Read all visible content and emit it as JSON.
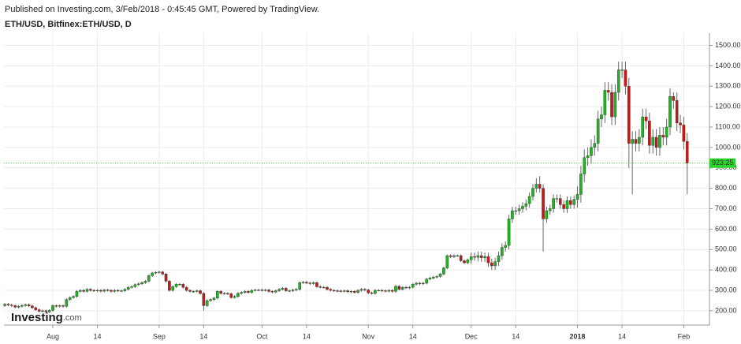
{
  "header": {
    "published": "Published on Investing.com, 3/Feb/2018 - 0:45:45 GMT, Powered by TradingView.",
    "symbol": "ETH/USD, Bitfinex:ETH/USD, D"
  },
  "logo": {
    "main": "Investing",
    "suffix": ".com"
  },
  "chart_data": {
    "type": "candlestick",
    "up_color": "#1fb51f",
    "down_color": "#c81818",
    "wick_color": "#666666",
    "grid": true,
    "last_price_color": "#2bd62b",
    "x": [
      "Jul 18",
      "Jul 19",
      "Jul 20",
      "Jul 21",
      "Jul 22",
      "Jul 23",
      "Jul 24",
      "Jul 25",
      "Jul 26",
      "Jul 27",
      "Jul 28",
      "Jul 29",
      "Jul 30",
      "Jul 31",
      "Aug 1",
      "Aug 2",
      "Aug 3",
      "Aug 4",
      "Aug 5",
      "Aug 6",
      "Aug 7",
      "Aug 8",
      "Aug 9",
      "Aug 10",
      "Aug 11",
      "Aug 12",
      "Aug 13",
      "Aug 14",
      "Aug 15",
      "Aug 16",
      "Aug 17",
      "Aug 18",
      "Aug 19",
      "Aug 20",
      "Aug 21",
      "Aug 22",
      "Aug 23",
      "Aug 24",
      "Aug 25",
      "Aug 26",
      "Aug 27",
      "Aug 28",
      "Aug 29",
      "Aug 30",
      "Aug 31",
      "Sep 1",
      "Sep 2",
      "Sep 3",
      "Sep 4",
      "Sep 5",
      "Sep 6",
      "Sep 7",
      "Sep 8",
      "Sep 9",
      "Sep 10",
      "Sep 11",
      "Sep 12",
      "Sep 13",
      "Sep 14",
      "Sep 15",
      "Sep 16",
      "Sep 17",
      "Sep 18",
      "Sep 19",
      "Sep 20",
      "Sep 21",
      "Sep 22",
      "Sep 23",
      "Sep 24",
      "Sep 25",
      "Sep 26",
      "Sep 27",
      "Sep 28",
      "Sep 29",
      "Sep 30",
      "Oct 1",
      "Oct 2",
      "Oct 3",
      "Oct 4",
      "Oct 5",
      "Oct 6",
      "Oct 7",
      "Oct 8",
      "Oct 9",
      "Oct 10",
      "Oct 11",
      "Oct 12",
      "Oct 13",
      "Oct 14",
      "Oct 15",
      "Oct 16",
      "Oct 17",
      "Oct 18",
      "Oct 19",
      "Oct 20",
      "Oct 21",
      "Oct 22",
      "Oct 23",
      "Oct 24",
      "Oct 25",
      "Oct 26",
      "Oct 27",
      "Oct 28",
      "Oct 29",
      "Oct 30",
      "Oct 31",
      "Nov 1",
      "Nov 2",
      "Nov 3",
      "Nov 4",
      "Nov 5",
      "Nov 6",
      "Nov 7",
      "Nov 8",
      "Nov 9",
      "Nov 10",
      "Nov 11",
      "Nov 12",
      "Nov 13",
      "Nov 14",
      "Nov 15",
      "Nov 16",
      "Nov 17",
      "Nov 18",
      "Nov 19",
      "Nov 20",
      "Nov 21",
      "Nov 22",
      "Nov 23",
      "Nov 24",
      "Nov 25",
      "Nov 26",
      "Nov 27",
      "Nov 28",
      "Nov 29",
      "Nov 30",
      "Dec 1",
      "Dec 2",
      "Dec 3",
      "Dec 4",
      "Dec 5",
      "Dec 6",
      "Dec 7",
      "Dec 8",
      "Dec 9",
      "Dec 10",
      "Dec 11",
      "Dec 12",
      "Dec 13",
      "Dec 14",
      "Dec 15",
      "Dec 16",
      "Dec 17",
      "Dec 18",
      "Dec 19",
      "Dec 20",
      "Dec 21",
      "Dec 22",
      "Dec 23",
      "Dec 24",
      "Dec 25",
      "Dec 26",
      "Dec 27",
      "Dec 28",
      "Dec 29",
      "Dec 30",
      "Dec 31",
      "Jan 1",
      "Jan 2",
      "Jan 3",
      "Jan 4",
      "Jan 5",
      "Jan 6",
      "Jan 7",
      "Jan 8",
      "Jan 9",
      "Jan 10",
      "Jan 11",
      "Jan 12",
      "Jan 13",
      "Jan 14",
      "Jan 15",
      "Jan 16",
      "Jan 17",
      "Jan 18",
      "Jan 19",
      "Jan 20",
      "Jan 21",
      "Jan 22",
      "Jan 23",
      "Jan 24",
      "Jan 25",
      "Jan 26",
      "Jan 27",
      "Jan 28",
      "Jan 29",
      "Jan 30",
      "Jan 31",
      "Feb 1",
      "Feb 2"
    ],
    "open": [
      225,
      232,
      228,
      225,
      218,
      222,
      226,
      230,
      224,
      215,
      205,
      198,
      200,
      195,
      202,
      225,
      222,
      225,
      222,
      255,
      265,
      270,
      295,
      300,
      295,
      305,
      300,
      298,
      300,
      296,
      302,
      300,
      295,
      300,
      298,
      298,
      305,
      315,
      318,
      328,
      332,
      338,
      345,
      372,
      385,
      388,
      390,
      380,
      345,
      300,
      318,
      330,
      330,
      315,
      300,
      295,
      295,
      298,
      285,
      225,
      250,
      255,
      262,
      295,
      285,
      285,
      283,
      265,
      270,
      285,
      290,
      295,
      290,
      300,
      302,
      302,
      300,
      302,
      295,
      292,
      298,
      305,
      310,
      298,
      298,
      302,
      305,
      338,
      340,
      336,
      333,
      338,
      318,
      315,
      315,
      305,
      300,
      298,
      297,
      296,
      298,
      293,
      295,
      290,
      300,
      305,
      302,
      288,
      285,
      300,
      300,
      298,
      296,
      300,
      295,
      320,
      305,
      315,
      312,
      315,
      330,
      335,
      332,
      335,
      355,
      360,
      365,
      368,
      380,
      410,
      470,
      465,
      470,
      470,
      445,
      435,
      450,
      465,
      462,
      470,
      460,
      465,
      435,
      420,
      440,
      470,
      510,
      520,
      650,
      690,
      690,
      700,
      712,
      725,
      760,
      800,
      820,
      800,
      650,
      690,
      700,
      750,
      750,
      720,
      700,
      740,
      720,
      745,
      770,
      870,
      950,
      960,
      1000,
      1020,
      1140,
      1160,
      1280,
      1270,
      1150,
      1270,
      1380,
      1380,
      1300,
      1020,
      1040,
      1020,
      1050,
      1150,
      1130,
      1010,
      1050,
      1000,
      1060,
      1050,
      1100,
      1250,
      1230,
      1120,
      1110,
      1030
    ],
    "high": [
      238,
      238,
      234,
      231,
      228,
      232,
      236,
      236,
      230,
      221,
      211,
      206,
      206,
      208,
      231,
      231,
      231,
      231,
      261,
      271,
      276,
      301,
      306,
      306,
      311,
      311,
      306,
      306,
      306,
      308,
      308,
      306,
      306,
      306,
      304,
      311,
      321,
      324,
      334,
      338,
      344,
      351,
      378,
      391,
      394,
      396,
      396,
      386,
      351,
      324,
      336,
      336,
      336,
      321,
      306,
      301,
      304,
      304,
      291,
      256,
      261,
      268,
      301,
      301,
      291,
      291,
      289,
      276,
      291,
      296,
      301,
      301,
      306,
      308,
      308,
      308,
      308,
      308,
      301,
      304,
      311,
      316,
      316,
      304,
      308,
      311,
      344,
      346,
      346,
      342,
      344,
      344,
      324,
      321,
      321,
      311,
      306,
      304,
      303,
      304,
      304,
      301,
      301,
      306,
      311,
      311,
      308,
      294,
      306,
      306,
      306,
      304,
      306,
      306,
      326,
      326,
      321,
      321,
      321,
      336,
      341,
      341,
      341,
      361,
      366,
      371,
      374,
      386,
      416,
      476,
      476,
      476,
      476,
      476,
      451,
      456,
      485,
      485,
      490,
      490,
      485,
      485,
      455,
      460,
      490,
      530,
      540,
      670,
      710,
      710,
      720,
      732,
      745,
      780,
      820,
      850,
      860,
      820,
      710,
      720,
      770,
      770,
      770,
      740,
      760,
      760,
      765,
      810,
      910,
      990,
      1000,
      1040,
      1060,
      1180,
      1200,
      1320,
      1320,
      1310,
      1310,
      1420,
      1420,
      1420,
      1340,
      1080,
      1080,
      1090,
      1190,
      1190,
      1170,
      1090,
      1090,
      1100,
      1100,
      1140,
      1290,
      1270,
      1270,
      1160,
      1150,
      1070
    ],
    "low": [
      219,
      222,
      219,
      212,
      212,
      216,
      220,
      218,
      209,
      199,
      192,
      192,
      189,
      189,
      196,
      216,
      216,
      216,
      216,
      249,
      259,
      264,
      289,
      289,
      289,
      294,
      292,
      292,
      290,
      290,
      294,
      289,
      289,
      292,
      292,
      292,
      299,
      309,
      312,
      322,
      326,
      332,
      339,
      366,
      379,
      382,
      374,
      339,
      294,
      294,
      312,
      324,
      309,
      294,
      289,
      289,
      289,
      279,
      200,
      219,
      244,
      249,
      256,
      279,
      279,
      277,
      259,
      259,
      264,
      279,
      284,
      284,
      284,
      294,
      296,
      294,
      294,
      289,
      286,
      286,
      292,
      299,
      292,
      292,
      292,
      296,
      299,
      332,
      330,
      327,
      327,
      312,
      309,
      309,
      299,
      294,
      292,
      291,
      290,
      290,
      287,
      287,
      284,
      284,
      294,
      296,
      282,
      279,
      279,
      294,
      292,
      290,
      290,
      289,
      289,
      299,
      299,
      306,
      306,
      309,
      324,
      326,
      326,
      329,
      349,
      354,
      359,
      362,
      374,
      404,
      459,
      459,
      464,
      439,
      429,
      429,
      430,
      445,
      442,
      440,
      440,
      415,
      400,
      400,
      420,
      450,
      490,
      500,
      630,
      670,
      670,
      680,
      692,
      705,
      740,
      780,
      780,
      490,
      630,
      670,
      680,
      730,
      700,
      680,
      680,
      700,
      700,
      705,
      730,
      830,
      910,
      920,
      960,
      980,
      1100,
      1120,
      1230,
      1110,
      1110,
      1230,
      1340,
      1260,
      900,
      770,
      980,
      980,
      1010,
      1090,
      970,
      970,
      960,
      960,
      1010,
      1010,
      1060,
      1190,
      1080,
      1070,
      990,
      770
    ],
    "close": [
      232,
      228,
      225,
      218,
      222,
      226,
      230,
      224,
      215,
      205,
      198,
      200,
      195,
      202,
      225,
      222,
      225,
      222,
      255,
      265,
      270,
      295,
      300,
      295,
      305,
      300,
      298,
      300,
      296,
      302,
      300,
      295,
      300,
      298,
      298,
      305,
      315,
      318,
      328,
      332,
      338,
      345,
      372,
      385,
      388,
      390,
      380,
      345,
      300,
      318,
      330,
      330,
      315,
      300,
      295,
      295,
      298,
      285,
      225,
      250,
      255,
      262,
      295,
      285,
      285,
      283,
      265,
      270,
      285,
      290,
      295,
      290,
      300,
      302,
      302,
      300,
      302,
      295,
      292,
      298,
      305,
      310,
      298,
      298,
      302,
      305,
      338,
      340,
      336,
      333,
      338,
      318,
      315,
      315,
      305,
      300,
      298,
      297,
      296,
      298,
      293,
      295,
      290,
      300,
      305,
      302,
      288,
      285,
      300,
      300,
      298,
      296,
      300,
      295,
      320,
      305,
      315,
      312,
      315,
      330,
      335,
      332,
      335,
      355,
      360,
      365,
      368,
      380,
      410,
      470,
      465,
      470,
      470,
      445,
      435,
      450,
      465,
      462,
      470,
      460,
      465,
      435,
      420,
      440,
      470,
      510,
      520,
      650,
      690,
      690,
      700,
      712,
      725,
      760,
      800,
      820,
      800,
      650,
      690,
      700,
      750,
      750,
      720,
      700,
      740,
      720,
      745,
      770,
      870,
      950,
      960,
      1000,
      1020,
      1140,
      1160,
      1280,
      1270,
      1150,
      1270,
      1380,
      1380,
      1300,
      1020,
      1040,
      1020,
      1050,
      1150,
      1130,
      1010,
      1050,
      1000,
      1060,
      1050,
      1100,
      1250,
      1230,
      1120,
      1110,
      1030,
      923.25
    ],
    "ylim": [
      130,
      1560
    ],
    "yticks": [
      {
        "value": 200,
        "label": "200.00"
      },
      {
        "value": 300,
        "label": "300.00"
      },
      {
        "value": 400,
        "label": "400.00"
      },
      {
        "value": 500,
        "label": "500.00"
      },
      {
        "value": 600,
        "label": "600.00"
      },
      {
        "value": 700,
        "label": "700.00"
      },
      {
        "value": 800,
        "label": "800.00"
      },
      {
        "value": 900,
        "label": "900.00"
      },
      {
        "value": 1000,
        "label": "1000.00"
      },
      {
        "value": 1100,
        "label": "1100.00"
      },
      {
        "value": 1200,
        "label": "1200.00"
      },
      {
        "value": 1300,
        "label": "1300.00"
      },
      {
        "value": 1400,
        "label": "1400.00"
      },
      {
        "value": 1500,
        "label": "1500.00"
      }
    ],
    "xticks": [
      {
        "value": "Aug 1",
        "label": "Aug"
      },
      {
        "value": "Aug 14",
        "label": "14"
      },
      {
        "value": "Sep 1",
        "label": "Sep"
      },
      {
        "value": "Sep 14",
        "label": "14"
      },
      {
        "value": "Oct 1",
        "label": "Oct"
      },
      {
        "value": "Oct 14",
        "label": "14"
      },
      {
        "value": "Nov 1",
        "label": "Nov"
      },
      {
        "value": "Nov 14",
        "label": "14"
      },
      {
        "value": "Dec 1",
        "label": "Dec"
      },
      {
        "value": "Dec 14",
        "label": "14"
      },
      {
        "value": "Jan 1",
        "label": "2018"
      },
      {
        "value": "Jan 14",
        "label": "14"
      },
      {
        "value": "Feb 1",
        "label": "Feb"
      }
    ]
  }
}
